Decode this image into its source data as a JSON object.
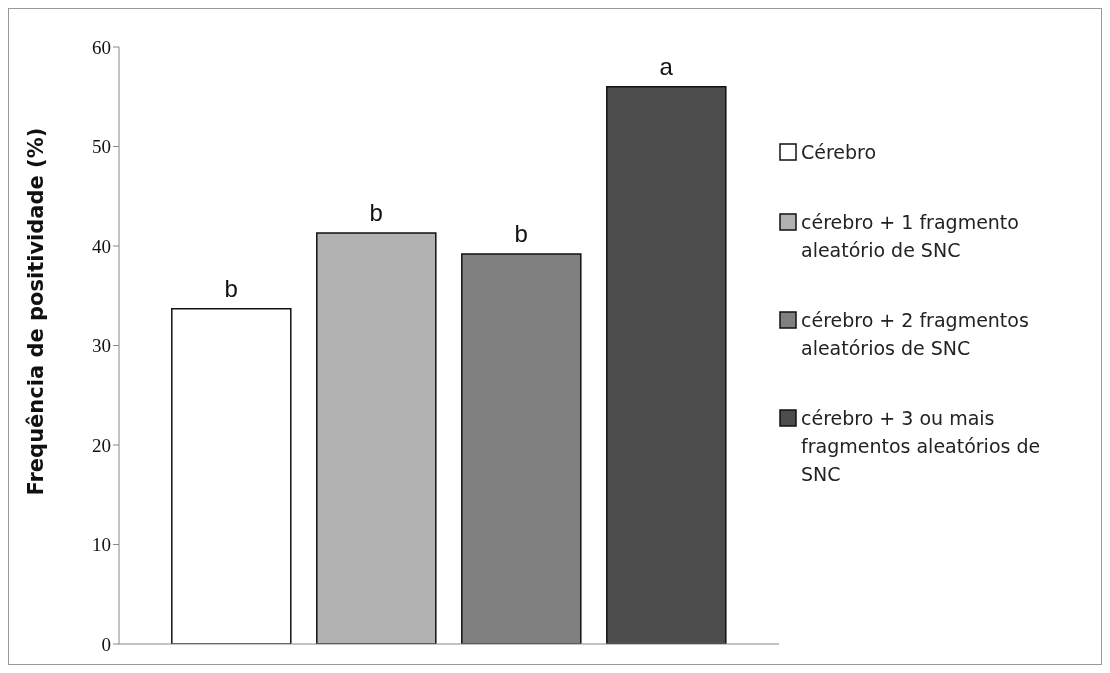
{
  "chart_data": {
    "type": "bar",
    "ylabel": "Frequência de positividade (%)",
    "categories": [
      null
    ],
    "ylim": [
      0,
      60
    ],
    "yticks": [
      0,
      10,
      20,
      30,
      40,
      50,
      60
    ],
    "grid": false,
    "legend": "right",
    "series": [
      {
        "name": "Cérebro",
        "color": "#ffffff",
        "values": [
          33.7
        ],
        "value_labels": [
          "b"
        ]
      },
      {
        "name": "cérebro + 1 fragmento aleatório de SNC",
        "color": "#b2b2b2",
        "values": [
          41.3
        ],
        "value_labels": [
          "b"
        ]
      },
      {
        "name": "cérebro + 2 fragmentos aleatórios de SNC",
        "color": "#808080",
        "values": [
          39.2
        ],
        "value_labels": [
          "b"
        ]
      },
      {
        "name": "cérebro + 3 ou mais fragmentos aleatórios de SNC",
        "color": "#4d4d4d",
        "values": [
          56.0
        ],
        "value_labels": [
          "a"
        ]
      }
    ]
  }
}
